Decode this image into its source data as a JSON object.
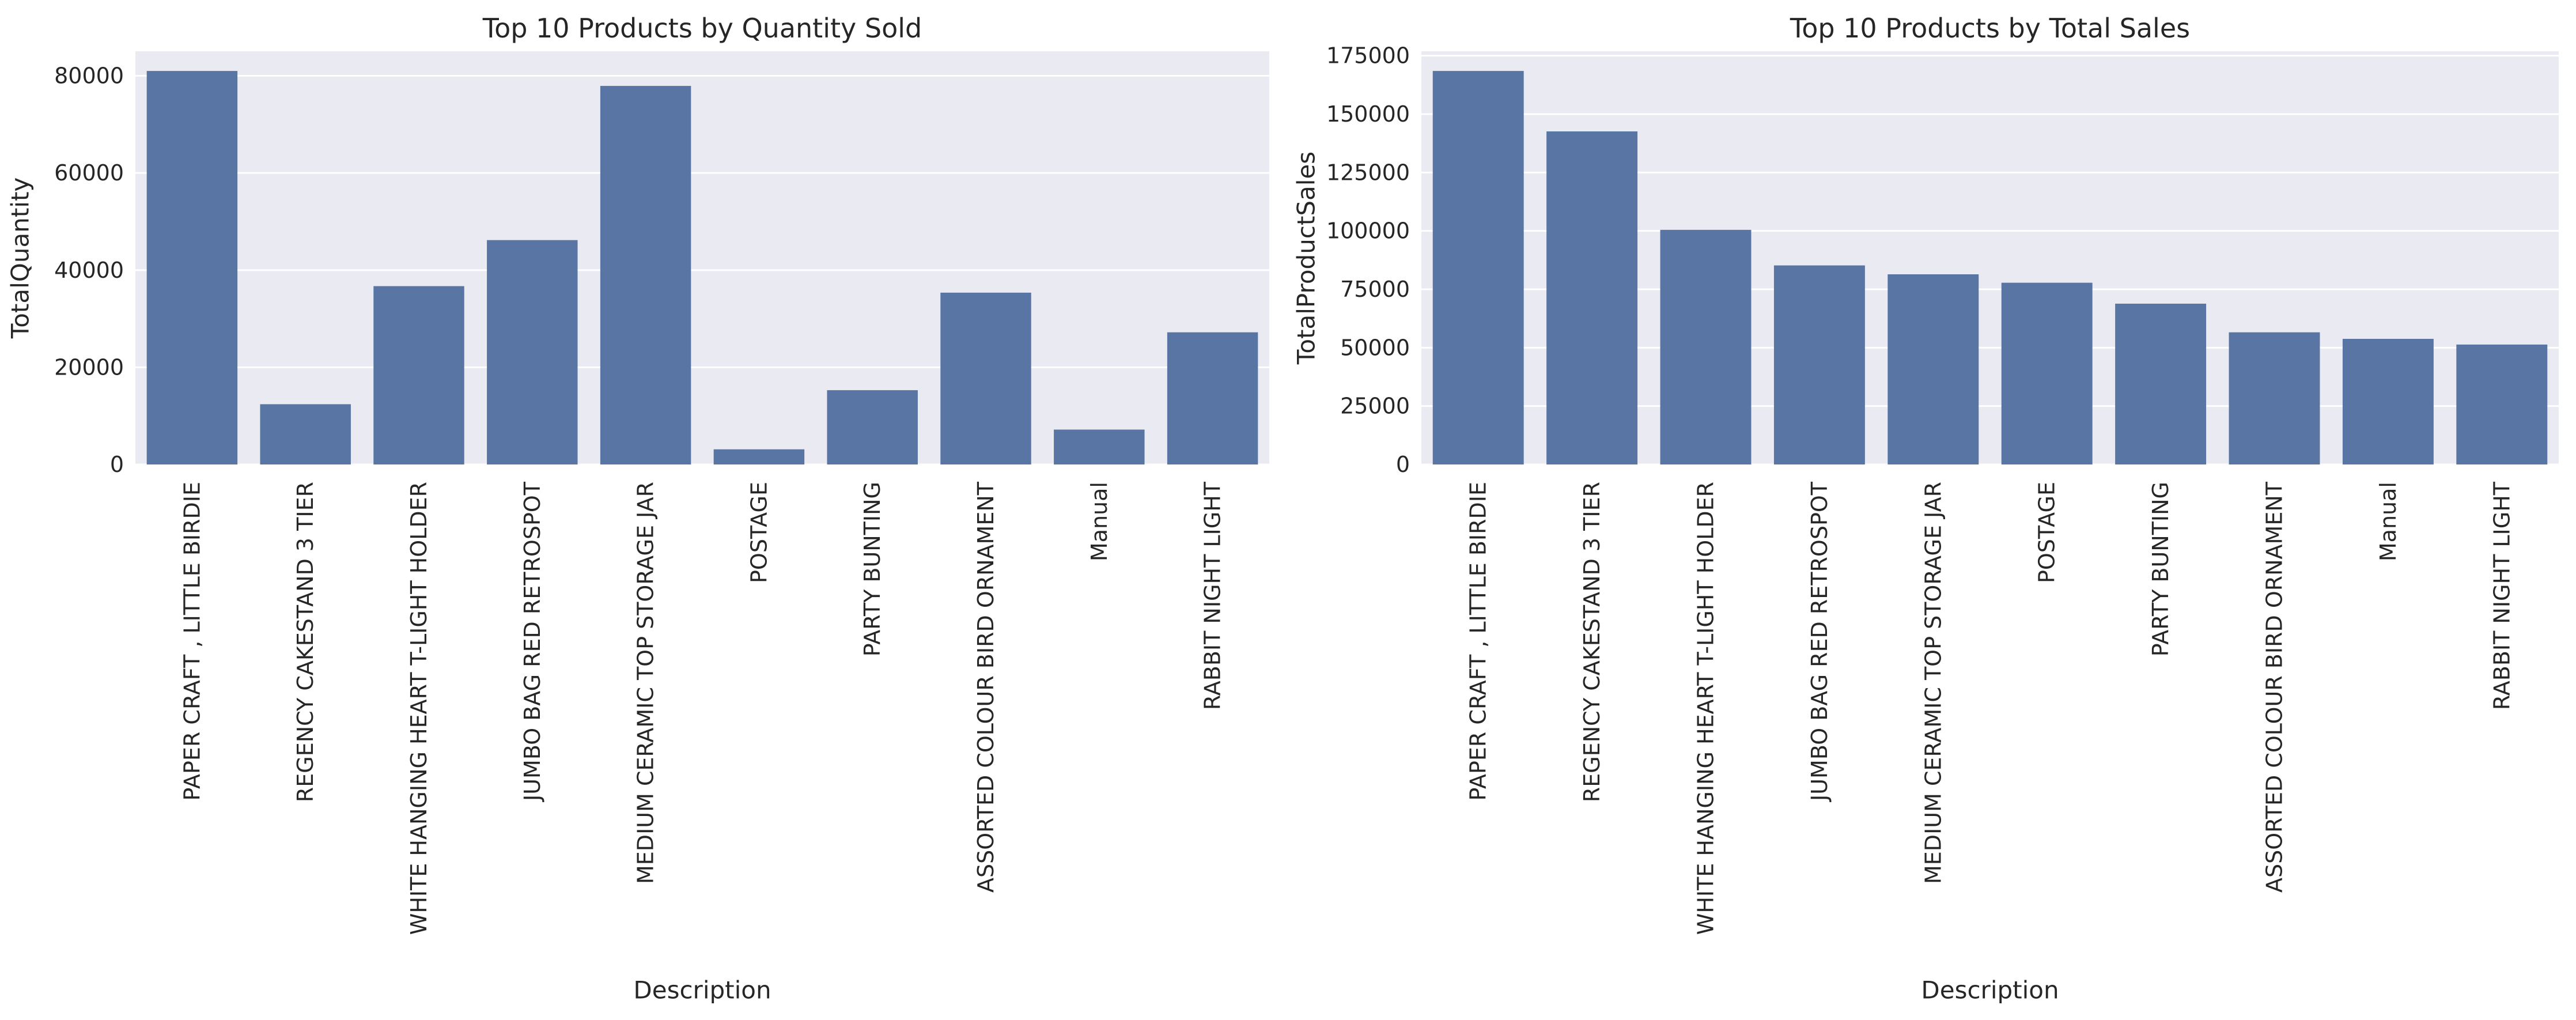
{
  "chart_data": [
    {
      "type": "bar",
      "title": "Top 10 Products by Quantity Sold",
      "xlabel": "Description",
      "ylabel": "TotalQuantity",
      "categories": [
        "PAPER CRAFT , LITTLE BIRDIE",
        "REGENCY CAKESTAND 3 TIER",
        "WHITE HANGING HEART T-LIGHT HOLDER",
        "JUMBO BAG RED RETROSPOT",
        "MEDIUM CERAMIC TOP STORAGE JAR",
        "POSTAGE",
        "PARTY BUNTING",
        "ASSORTED COLOUR BIRD ORNAMENT",
        "Manual",
        "RABBIT NIGHT LIGHT"
      ],
      "values": [
        80995,
        12402,
        36706,
        46181,
        77916,
        3120,
        15291,
        35362,
        7179,
        27202
      ],
      "yticks": [
        0,
        20000,
        40000,
        60000,
        80000
      ],
      "ylim": [
        0,
        85044
      ],
      "grid": true,
      "bar_color": "#5875a4",
      "background_color": "#eaeaf2"
    },
    {
      "type": "bar",
      "title": "Top 10 Products by Total Sales",
      "xlabel": "Description",
      "ylabel": "TotalProductSales",
      "categories": [
        "PAPER CRAFT , LITTLE BIRDIE",
        "REGENCY CAKESTAND 3 TIER",
        "WHITE HANGING HEART T-LIGHT HOLDER",
        "JUMBO BAG RED RETROSPOT",
        "MEDIUM CERAMIC TOP STORAGE JAR",
        "POSTAGE",
        "PARTY BUNTING",
        "ASSORTED COLOUR BIRD ORNAMENT",
        "Manual",
        "RABBIT NIGHT LIGHT"
      ],
      "values": [
        168470,
        142593,
        100448,
        85221,
        81416,
        77804,
        68844,
        56580,
        53780,
        51346
      ],
      "yticks": [
        0,
        25000,
        50000,
        75000,
        100000,
        125000,
        150000,
        175000
      ],
      "ylim": [
        0,
        176893
      ],
      "grid": true,
      "bar_color": "#5875a4",
      "background_color": "#eaeaf2"
    }
  ]
}
